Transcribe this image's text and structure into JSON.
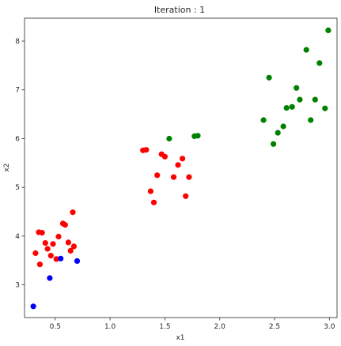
{
  "chart_data": {
    "type": "scatter",
    "title": "Iteration : 1",
    "xlabel": "x1",
    "ylabel": "x2",
    "xlim": [
      0.22,
      3.07
    ],
    "ylim": [
      2.33,
      8.47
    ],
    "xticks": [
      "0.5",
      "1.0",
      "1.5",
      "2.0",
      "2.5",
      "3.0"
    ],
    "xtick_values": [
      0.5,
      1.0,
      1.5,
      2.0,
      2.5,
      3.0
    ],
    "yticks": [
      "3",
      "4",
      "5",
      "6",
      "7",
      "8"
    ],
    "ytick_values": [
      3,
      4,
      5,
      6,
      7,
      8
    ],
    "grid": false,
    "legend": false,
    "series": [
      {
        "color": "#ff0000",
        "points": [
          [
            0.32,
            3.65
          ],
          [
            0.35,
            4.08
          ],
          [
            0.36,
            3.42
          ],
          [
            0.38,
            4.07
          ],
          [
            0.41,
            3.86
          ],
          [
            0.43,
            3.74
          ],
          [
            0.46,
            3.6
          ],
          [
            0.48,
            3.84
          ],
          [
            0.51,
            3.53
          ],
          [
            0.53,
            3.99
          ],
          [
            0.57,
            4.26
          ],
          [
            0.59,
            4.23
          ],
          [
            0.62,
            3.87
          ],
          [
            0.64,
            3.7
          ],
          [
            0.66,
            4.49
          ],
          [
            0.67,
            3.79
          ],
          [
            1.3,
            5.76
          ],
          [
            1.33,
            5.77
          ],
          [
            1.37,
            4.92
          ],
          [
            1.4,
            4.69
          ],
          [
            1.43,
            5.25
          ],
          [
            1.47,
            5.68
          ],
          [
            1.5,
            5.63
          ],
          [
            1.58,
            5.21
          ],
          [
            1.62,
            5.46
          ],
          [
            1.66,
            5.59
          ],
          [
            1.69,
            4.82
          ],
          [
            1.72,
            5.21
          ]
        ]
      },
      {
        "color": "#0000ff",
        "points": [
          [
            0.3,
            2.56
          ],
          [
            0.45,
            3.14
          ],
          [
            0.55,
            3.54
          ],
          [
            0.7,
            3.49
          ]
        ]
      },
      {
        "color": "#008000",
        "points": [
          [
            1.54,
            6.0
          ],
          [
            1.77,
            6.05
          ],
          [
            1.8,
            6.06
          ],
          [
            2.4,
            6.38
          ],
          [
            2.45,
            7.25
          ],
          [
            2.49,
            5.89
          ],
          [
            2.53,
            6.12
          ],
          [
            2.58,
            6.25
          ],
          [
            2.61,
            6.63
          ],
          [
            2.66,
            6.65
          ],
          [
            2.7,
            7.04
          ],
          [
            2.73,
            6.8
          ],
          [
            2.79,
            7.82
          ],
          [
            2.83,
            6.38
          ],
          [
            2.87,
            6.8
          ],
          [
            2.91,
            7.55
          ],
          [
            2.96,
            6.62
          ],
          [
            2.99,
            8.22
          ]
        ]
      }
    ]
  }
}
